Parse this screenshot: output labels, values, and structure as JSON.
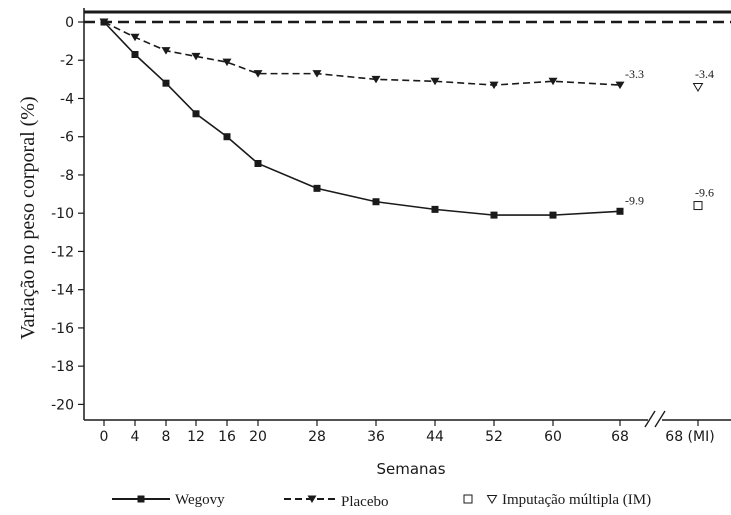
{
  "chart_data": {
    "type": "line",
    "xlabel": "Semanas",
    "ylabel": "Variação no peso corporal (%)",
    "ylim": [
      -20.5,
      0.3
    ],
    "yticks": [
      0,
      -2,
      -4,
      -6,
      -8,
      -10,
      -12,
      -14,
      -16,
      -18,
      -20
    ],
    "xticks": [
      "0",
      "4",
      "8",
      "12",
      "16",
      "20",
      "28",
      "36",
      "44",
      "52",
      "60",
      "68",
      "68 (MI)"
    ],
    "reference_line": {
      "y": 0,
      "style": "dashed"
    },
    "axis_break": true,
    "series": [
      {
        "name": "Wegovy",
        "style": "solid",
        "marker": "filled-square",
        "x": [
          0,
          4,
          8,
          12,
          16,
          20,
          28,
          36,
          44,
          52,
          60,
          68
        ],
        "y": [
          0,
          -1.7,
          -3.2,
          -4.8,
          -6.0,
          -7.4,
          -8.7,
          -9.4,
          -9.8,
          -10.1,
          -10.1,
          -9.9
        ],
        "end_label": "-9.9",
        "mi_value": -9.6,
        "mi_label": "-9.6",
        "mi_marker": "open-square"
      },
      {
        "name": "Placebo",
        "style": "dashed",
        "marker": "filled-triangle-down",
        "x": [
          0,
          4,
          8,
          12,
          16,
          20,
          28,
          36,
          44,
          52,
          60,
          68
        ],
        "y": [
          0,
          -0.8,
          -1.5,
          -1.8,
          -2.1,
          -2.7,
          -2.7,
          -3.0,
          -3.1,
          -3.3,
          -3.1,
          -3.3
        ],
        "end_label": "-3.3",
        "mi_value": -3.4,
        "mi_label": "-3.4",
        "mi_marker": "open-triangle-down"
      }
    ],
    "legend": {
      "position": "bottom",
      "items": [
        {
          "label": "Wegovy",
          "series": "Wegovy"
        },
        {
          "label": "Placebo",
          "series": "Placebo"
        },
        {
          "label": "Imputação múltipla (IM)",
          "series": "MI"
        }
      ]
    }
  }
}
